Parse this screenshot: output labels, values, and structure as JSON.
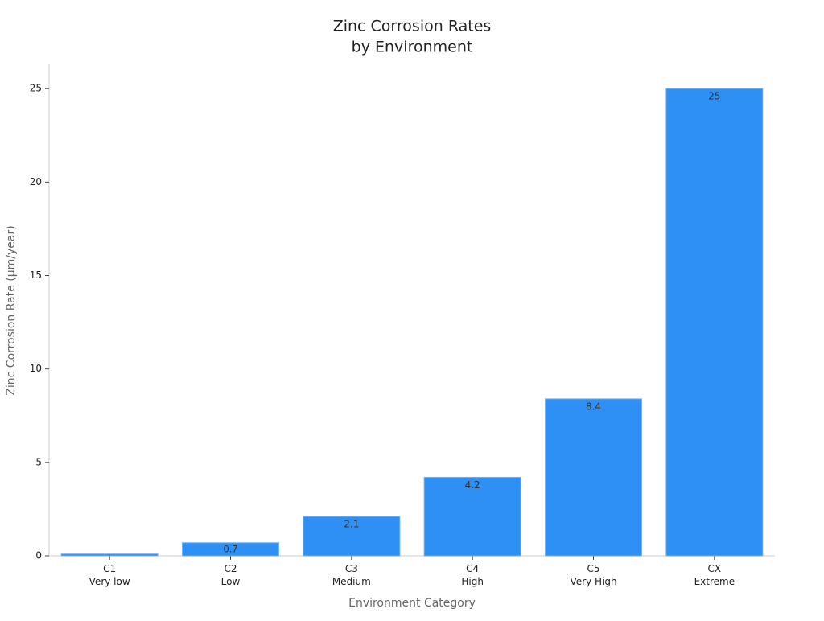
{
  "chart_data": {
    "type": "bar",
    "title": [
      "Zinc Corrosion Rates",
      "by Environment"
    ],
    "x_label": "Environment Category",
    "y_label": "Zinc Corrosion Rate (μm/year)",
    "categories": [
      [
        "C1",
        "Very low"
      ],
      [
        "C2",
        "Low"
      ],
      [
        "C3",
        "Medium"
      ],
      [
        "C4",
        "High"
      ],
      [
        "C5",
        "Very High"
      ],
      [
        "CX",
        "Extreme"
      ]
    ],
    "values": [
      0.1,
      0.7,
      2.1,
      4.2,
      8.4,
      25
    ],
    "color": "#2e90f5",
    "ylim": [
      0,
      26.3
    ],
    "yticks": [
      0,
      5,
      10,
      15,
      20,
      25
    ],
    "grid": false
  }
}
